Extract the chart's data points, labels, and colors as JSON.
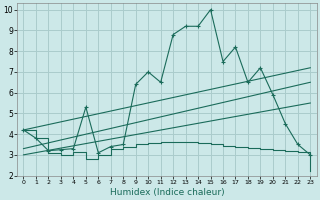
{
  "xlabel": "Humidex (Indice chaleur)",
  "bg_color": "#cce8e8",
  "grid_color": "#aacccc",
  "line_color": "#1a6b5a",
  "xlim": [
    -0.5,
    23.5
  ],
  "ylim": [
    2,
    10.3
  ],
  "yticks": [
    2,
    3,
    4,
    5,
    6,
    7,
    8,
    9,
    10
  ],
  "xticks": [
    0,
    1,
    2,
    3,
    4,
    5,
    6,
    7,
    8,
    9,
    10,
    11,
    12,
    13,
    14,
    15,
    16,
    17,
    18,
    19,
    20,
    21,
    22,
    23
  ],
  "line_main": [
    [
      0,
      4.2
    ],
    [
      1,
      3.8
    ],
    [
      2,
      3.2
    ],
    [
      3,
      3.25
    ],
    [
      4,
      3.3
    ],
    [
      5,
      5.3
    ],
    [
      6,
      3.1
    ],
    [
      7,
      3.4
    ],
    [
      8,
      3.5
    ],
    [
      9,
      6.4
    ],
    [
      10,
      7.0
    ],
    [
      11,
      6.5
    ],
    [
      12,
      8.8
    ],
    [
      13,
      9.2
    ],
    [
      14,
      9.2
    ],
    [
      15,
      10.0
    ],
    [
      16,
      7.5
    ],
    [
      17,
      8.2
    ],
    [
      18,
      6.5
    ],
    [
      19,
      7.2
    ],
    [
      20,
      5.9
    ],
    [
      21,
      4.5
    ],
    [
      22,
      3.5
    ],
    [
      23,
      3.0
    ]
  ],
  "line_lower_jagged": [
    [
      0,
      4.2
    ],
    [
      1,
      3.8
    ],
    [
      2,
      3.1
    ],
    [
      3,
      3.0
    ],
    [
      4,
      3.15
    ],
    [
      5,
      2.8
    ],
    [
      6,
      3.0
    ],
    [
      7,
      3.3
    ],
    [
      8,
      3.4
    ],
    [
      9,
      3.5
    ],
    [
      10,
      3.55
    ],
    [
      11,
      3.6
    ],
    [
      12,
      3.6
    ],
    [
      13,
      3.6
    ],
    [
      14,
      3.55
    ],
    [
      15,
      3.5
    ],
    [
      16,
      3.45
    ],
    [
      17,
      3.4
    ],
    [
      18,
      3.35
    ],
    [
      19,
      3.3
    ],
    [
      20,
      3.25
    ],
    [
      21,
      3.2
    ],
    [
      22,
      3.15
    ],
    [
      23,
      2.2
    ]
  ],
  "line_trend_upper": [
    [
      0,
      4.2
    ],
    [
      23,
      7.2
    ]
  ],
  "line_trend_mid": [
    [
      0,
      3.3
    ],
    [
      23,
      6.5
    ]
  ],
  "line_trend_lower": [
    [
      0,
      3.0
    ],
    [
      23,
      5.5
    ]
  ]
}
